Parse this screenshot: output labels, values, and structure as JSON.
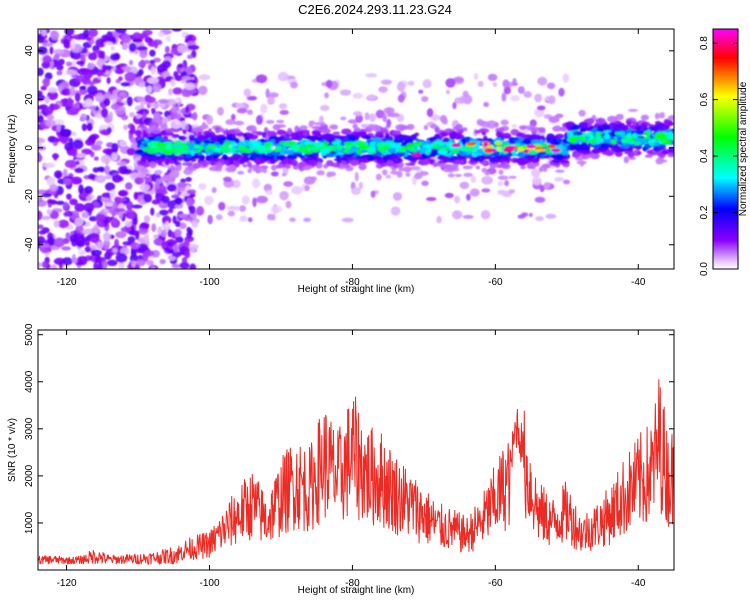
{
  "title": "C2E6.2024.293.11.23.G24",
  "chart_data": [
    {
      "type": "heatmap",
      "xlabel": "Height of straight line (km)",
      "ylabel": "Frequency (Hz)",
      "xlim": [
        -124,
        -35
      ],
      "ylim": [
        -50,
        49
      ],
      "x_ticks": [
        -120,
        -100,
        -80,
        -60,
        -40
      ],
      "y_ticks": [
        -40,
        -20,
        0,
        20,
        40
      ],
      "colorbar": {
        "label": "Normalized spectral amplitude",
        "range": [
          0,
          0.85
        ],
        "ticks": [
          0.0,
          0.2,
          0.4,
          0.6,
          0.8
        ],
        "colors": [
          "#ffffff",
          "#8a00ff",
          "#0000ff",
          "#00ffff",
          "#00ff00",
          "#ffff00",
          "#ff0000",
          "#ff00ff"
        ]
      },
      "features": [
        {
          "x_range": [
            -124,
            -107
          ],
          "y_range": [
            -50,
            49
          ],
          "amplitude": 0.1
        },
        {
          "x_range": [
            -110,
            -35
          ],
          "y_center": 0,
          "y_halfwidth": 6,
          "amplitude": 0.3
        },
        {
          "x_range": [
            -65,
            -52
          ],
          "y_center": 0,
          "peak_amplitude": 0.85
        },
        {
          "x_range": [
            -50,
            -35
          ],
          "y_center": 5,
          "y_halfwidth": 6,
          "amplitude": 0.35
        }
      ]
    },
    {
      "type": "line",
      "xlabel": "Height of straight line (km)",
      "ylabel": "SNR (10 * v/v)",
      "xlim": [
        -124,
        -35
      ],
      "ylim": [
        0,
        5100
      ],
      "x_ticks": [
        -120,
        -100,
        -80,
        -60,
        -40
      ],
      "y_ticks": [
        1000,
        2000,
        3000,
        4000,
        5000
      ],
      "color": "#ee2a24",
      "series": [
        {
          "x": [
            -124,
            -122,
            -120,
            -118,
            -116,
            -114,
            -112,
            -110,
            -108,
            -106,
            -104,
            -102,
            -100,
            -98,
            -96,
            -94,
            -92,
            -90,
            -88,
            -86,
            -84,
            -82,
            -80,
            -78,
            -76,
            -74,
            -72,
            -70,
            -68,
            -66,
            -64,
            -62,
            -60,
            -58,
            -57,
            -56,
            -54,
            -52,
            -50,
            -48,
            -46,
            -44,
            -42,
            -40,
            -38,
            -37,
            -36,
            -35
          ],
          "y": [
            200,
            220,
            180,
            200,
            400,
            220,
            240,
            260,
            300,
            380,
            520,
            620,
            700,
            1100,
            1500,
            1800,
            1350,
            2000,
            2400,
            2200,
            3000,
            2500,
            3200,
            2600,
            2500,
            2100,
            1800,
            1500,
            1200,
            1100,
            950,
            1300,
            1900,
            2500,
            3700,
            2900,
            1600,
            1300,
            1600,
            1000,
            1200,
            1500,
            2000,
            2400,
            2700,
            3600,
            2600,
            2500
          ]
        }
      ]
    }
  ]
}
